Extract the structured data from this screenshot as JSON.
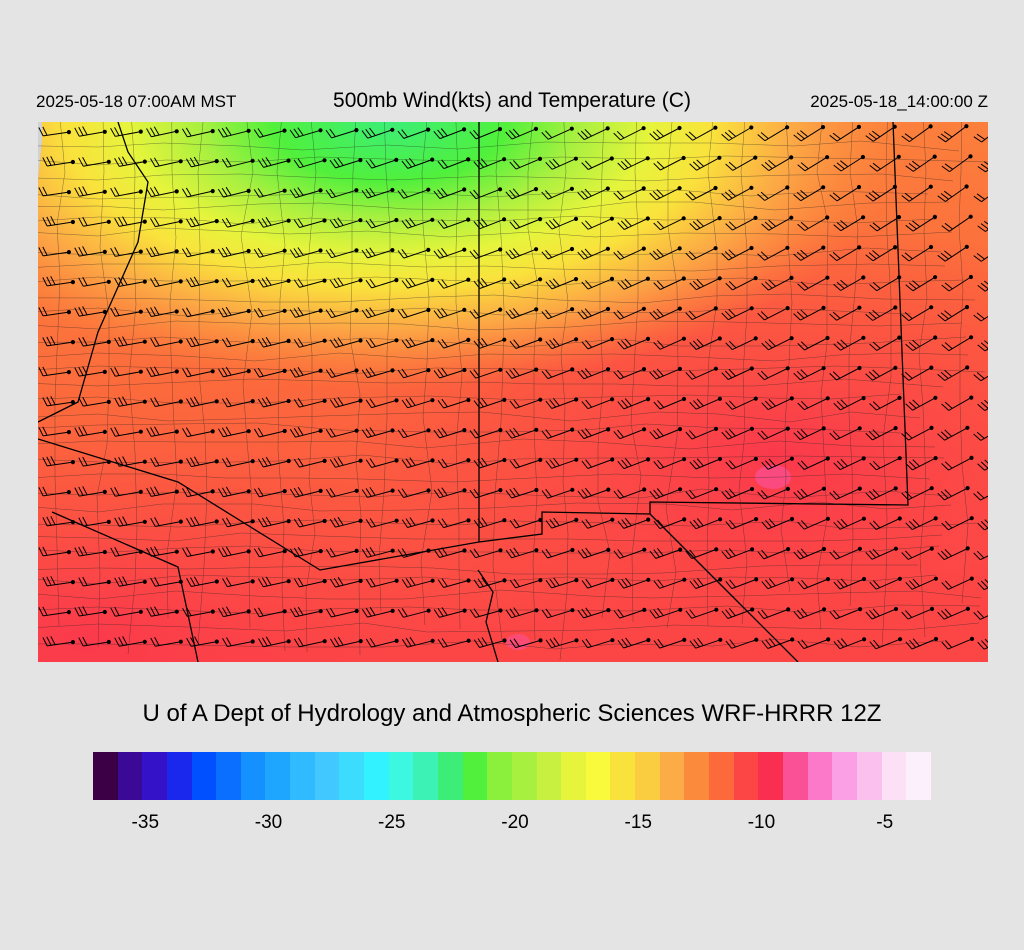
{
  "header": {
    "valid_local": "2025-05-18 07:00AM MST",
    "title": "500mb Wind(kts) and Temperature (C)",
    "valid_utc": "2025-05-18_14:00:00 Z"
  },
  "footer": {
    "credit": "U of A Dept of Hydrology and Atmospheric Sciences WRF-HRRR 12Z"
  },
  "map": {
    "field": "500mb temperature with wind barbs",
    "units_temperature": "C",
    "units_wind": "kts",
    "wind_direction": "southwesterly to westerly",
    "warmest_region": "south and southeast",
    "coldest_region": "north (upper center)"
  },
  "colorbar": {
    "colors": [
      "#3c0046",
      "#3a0a96",
      "#3312c8",
      "#1a28ee",
      "#0050ff",
      "#0a6eff",
      "#1490ff",
      "#1ea6ff",
      "#30baff",
      "#40c8ff",
      "#3cdcff",
      "#32f2ff",
      "#3cf8e0",
      "#3cf2b4",
      "#3cee78",
      "#50f03c",
      "#8af03c",
      "#a8f040",
      "#c8f040",
      "#e6f43c",
      "#fafa3c",
      "#fae23c",
      "#facc40",
      "#fcac46",
      "#fc8a3c",
      "#fc6a3c",
      "#fc4646",
      "#fa2e50",
      "#fa5096",
      "#fc78c8",
      "#fca0e6",
      "#fcc0ee",
      "#fce0f6",
      "#fcf0fc"
    ],
    "ticks": [
      {
        "label": "-35",
        "value": -35
      },
      {
        "label": "-30",
        "value": -30
      },
      {
        "label": "-25",
        "value": -25
      },
      {
        "label": "-20",
        "value": -20
      },
      {
        "label": "-15",
        "value": -15
      },
      {
        "label": "-10",
        "value": -10
      },
      {
        "label": "-5",
        "value": -5
      }
    ]
  }
}
